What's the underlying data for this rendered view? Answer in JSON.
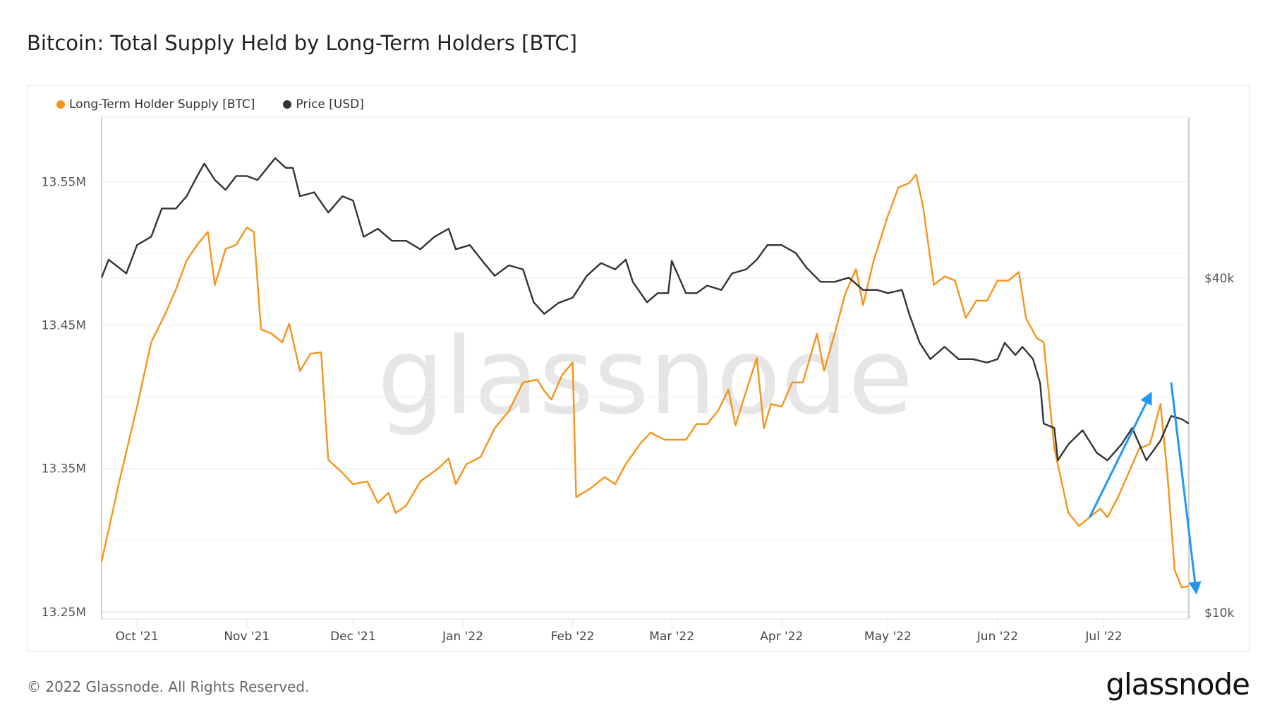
{
  "title": "Bitcoin: Total Supply Held by Long-Term Holders [BTC]",
  "footer": "© 2022 Glassnode. All Rights Reserved.",
  "logo": "glassnode",
  "chart_data": {
    "type": "line",
    "title": "Bitcoin: Total Supply Held by Long-Term Holders [BTC]",
    "watermark": "glassnode",
    "legend_position": "top-left",
    "x_range": [
      "2021-09-21",
      "2022-07-25"
    ],
    "x_ticks": [
      {
        "date": "2021-10-01",
        "label": "Oct '21"
      },
      {
        "date": "2021-11-01",
        "label": "Nov '21"
      },
      {
        "date": "2021-12-01",
        "label": "Dec '21"
      },
      {
        "date": "2022-01-01",
        "label": "Jan '22"
      },
      {
        "date": "2022-02-01",
        "label": "Feb '22"
      },
      {
        "date": "2022-03-01",
        "label": "Mar '22"
      },
      {
        "date": "2022-04-01",
        "label": "Apr '22"
      },
      {
        "date": "2022-05-01",
        "label": "May '22"
      },
      {
        "date": "2022-06-01",
        "label": "Jun '22"
      },
      {
        "date": "2022-07-01",
        "label": "Jul '22"
      }
    ],
    "y_left": {
      "ylim": [
        13.245,
        13.595
      ],
      "unit": "M BTC",
      "ticks": [
        {
          "v": 13.55,
          "label": "13.55M"
        },
        {
          "v": 13.45,
          "label": "13.45M"
        },
        {
          "v": 13.35,
          "label": "13.35M"
        },
        {
          "v": 13.25,
          "label": "13.25M"
        }
      ]
    },
    "y_right": {
      "scale": "log",
      "ticks": [
        {
          "v": 40000,
          "label": "$40k"
        },
        {
          "v": 10000,
          "label": "$10k"
        }
      ]
    },
    "series": [
      {
        "name": "Long-Term Holder Supply [BTC]",
        "axis": "left",
        "color": "#f7931a",
        "points": [
          [
            "2021-09-21",
            13.285
          ],
          [
            "2021-09-26",
            13.341
          ],
          [
            "2021-10-01",
            13.393
          ],
          [
            "2021-10-05",
            13.438
          ],
          [
            "2021-10-09",
            13.458
          ],
          [
            "2021-10-12",
            13.475
          ],
          [
            "2021-10-15",
            13.495
          ],
          [
            "2021-10-18",
            13.506
          ],
          [
            "2021-10-21",
            13.515
          ],
          [
            "2021-10-23",
            13.478
          ],
          [
            "2021-10-26",
            13.503
          ],
          [
            "2021-10-29",
            13.506
          ],
          [
            "2021-11-01",
            13.518
          ],
          [
            "2021-11-03",
            13.515
          ],
          [
            "2021-11-05",
            13.447
          ],
          [
            "2021-11-08",
            13.444
          ],
          [
            "2021-11-11",
            13.438
          ],
          [
            "2021-11-13",
            13.451
          ],
          [
            "2021-11-16",
            13.418
          ],
          [
            "2021-11-19",
            13.43
          ],
          [
            "2021-11-22",
            13.431
          ],
          [
            "2021-11-24",
            13.356
          ],
          [
            "2021-11-28",
            13.347
          ],
          [
            "2021-12-01",
            13.339
          ],
          [
            "2021-12-05",
            13.341
          ],
          [
            "2021-12-08",
            13.326
          ],
          [
            "2021-12-11",
            13.333
          ],
          [
            "2021-12-13",
            13.319
          ],
          [
            "2021-12-16",
            13.324
          ],
          [
            "2021-12-20",
            13.341
          ],
          [
            "2021-12-25",
            13.35
          ],
          [
            "2021-12-28",
            13.357
          ],
          [
            "2021-12-30",
            13.339
          ],
          [
            "2022-01-02",
            13.353
          ],
          [
            "2022-01-06",
            13.358
          ],
          [
            "2022-01-10",
            13.378
          ],
          [
            "2022-01-14",
            13.39
          ],
          [
            "2022-01-18",
            13.41
          ],
          [
            "2022-01-22",
            13.412
          ],
          [
            "2022-01-24",
            13.404
          ],
          [
            "2022-01-26",
            13.398
          ],
          [
            "2022-01-29",
            13.415
          ],
          [
            "2022-02-01",
            13.424
          ],
          [
            "2022-02-02",
            13.33
          ],
          [
            "2022-02-06",
            13.336
          ],
          [
            "2022-02-10",
            13.344
          ],
          [
            "2022-02-13",
            13.339
          ],
          [
            "2022-02-16",
            13.353
          ],
          [
            "2022-02-20",
            13.367
          ],
          [
            "2022-02-23",
            13.375
          ],
          [
            "2022-02-27",
            13.37
          ],
          [
            "2022-03-02",
            13.37
          ],
          [
            "2022-03-05",
            13.37
          ],
          [
            "2022-03-08",
            13.381
          ],
          [
            "2022-03-11",
            13.381
          ],
          [
            "2022-03-14",
            13.39
          ],
          [
            "2022-03-17",
            13.405
          ],
          [
            "2022-03-19",
            13.38
          ],
          [
            "2022-03-22",
            13.404
          ],
          [
            "2022-03-25",
            13.427
          ],
          [
            "2022-03-27",
            13.378
          ],
          [
            "2022-03-29",
            13.395
          ],
          [
            "2022-04-01",
            13.393
          ],
          [
            "2022-04-04",
            13.41
          ],
          [
            "2022-04-07",
            13.41
          ],
          [
            "2022-04-11",
            13.444
          ],
          [
            "2022-04-13",
            13.418
          ],
          [
            "2022-04-16",
            13.444
          ],
          [
            "2022-04-19",
            13.472
          ],
          [
            "2022-04-22",
            13.489
          ],
          [
            "2022-04-24",
            13.464
          ],
          [
            "2022-04-27",
            13.495
          ],
          [
            "2022-05-01",
            13.526
          ],
          [
            "2022-05-04",
            13.546
          ],
          [
            "2022-05-07",
            13.549
          ],
          [
            "2022-05-09",
            13.555
          ],
          [
            "2022-05-11",
            13.532
          ],
          [
            "2022-05-14",
            13.478
          ],
          [
            "2022-05-17",
            13.484
          ],
          [
            "2022-05-20",
            13.481
          ],
          [
            "2022-05-23",
            13.455
          ],
          [
            "2022-05-26",
            13.467
          ],
          [
            "2022-05-29",
            13.467
          ],
          [
            "2022-06-01",
            13.481
          ],
          [
            "2022-06-04",
            13.481
          ],
          [
            "2022-06-07",
            13.487
          ],
          [
            "2022-06-09",
            13.455
          ],
          [
            "2022-06-12",
            13.441
          ],
          [
            "2022-06-14",
            13.438
          ],
          [
            "2022-06-17",
            13.364
          ],
          [
            "2022-06-21",
            13.319
          ],
          [
            "2022-06-24",
            13.31
          ],
          [
            "2022-06-27",
            13.316
          ],
          [
            "2022-06-30",
            13.322
          ],
          [
            "2022-07-02",
            13.316
          ],
          [
            "2022-07-05",
            13.33
          ],
          [
            "2022-07-08",
            13.347
          ],
          [
            "2022-07-11",
            13.364
          ],
          [
            "2022-07-14",
            13.367
          ],
          [
            "2022-07-17",
            13.395
          ],
          [
            "2022-07-19",
            13.344
          ],
          [
            "2022-07-21",
            13.279
          ],
          [
            "2022-07-23",
            13.267
          ],
          [
            "2022-07-25",
            13.268
          ]
        ]
      },
      {
        "name": "Price [USD]",
        "axis": "right",
        "color": "#333333",
        "points": [
          [
            "2021-09-21",
            40100
          ],
          [
            "2021-09-23",
            43200
          ],
          [
            "2021-09-28",
            40800
          ],
          [
            "2021-10-01",
            45900
          ],
          [
            "2021-10-05",
            47500
          ],
          [
            "2021-10-08",
            53400
          ],
          [
            "2021-10-12",
            53400
          ],
          [
            "2021-10-15",
            56200
          ],
          [
            "2021-10-18",
            61100
          ],
          [
            "2021-10-20",
            64300
          ],
          [
            "2021-10-23",
            60100
          ],
          [
            "2021-10-26",
            57700
          ],
          [
            "2021-10-29",
            61100
          ],
          [
            "2021-11-01",
            61100
          ],
          [
            "2021-11-04",
            60100
          ],
          [
            "2021-11-09",
            65800
          ],
          [
            "2021-11-12",
            63200
          ],
          [
            "2021-11-14",
            63200
          ],
          [
            "2021-11-16",
            56200
          ],
          [
            "2021-11-20",
            57100
          ],
          [
            "2021-11-24",
            52500
          ],
          [
            "2021-11-28",
            56200
          ],
          [
            "2021-12-01",
            55200
          ],
          [
            "2021-12-04",
            47500
          ],
          [
            "2021-12-08",
            49100
          ],
          [
            "2021-12-12",
            46700
          ],
          [
            "2021-12-16",
            46700
          ],
          [
            "2021-12-20",
            45100
          ],
          [
            "2021-12-24",
            47500
          ],
          [
            "2021-12-28",
            49100
          ],
          [
            "2021-12-30",
            45100
          ],
          [
            "2022-01-03",
            45900
          ],
          [
            "2022-01-07",
            42600
          ],
          [
            "2022-01-10",
            40400
          ],
          [
            "2022-01-14",
            42200
          ],
          [
            "2022-01-18",
            41500
          ],
          [
            "2022-01-21",
            36200
          ],
          [
            "2022-01-24",
            34500
          ],
          [
            "2022-01-28",
            36100
          ],
          [
            "2022-02-01",
            36900
          ],
          [
            "2022-02-05",
            40400
          ],
          [
            "2022-02-09",
            42600
          ],
          [
            "2022-02-13",
            41500
          ],
          [
            "2022-02-16",
            43200
          ],
          [
            "2022-02-18",
            39400
          ],
          [
            "2022-02-22",
            36200
          ],
          [
            "2022-02-25",
            37600
          ],
          [
            "2022-02-28",
            37600
          ],
          [
            "2022-03-01",
            43000
          ],
          [
            "2022-03-05",
            37600
          ],
          [
            "2022-03-08",
            37600
          ],
          [
            "2022-03-11",
            38800
          ],
          [
            "2022-03-15",
            38100
          ],
          [
            "2022-03-18",
            40800
          ],
          [
            "2022-03-22",
            41500
          ],
          [
            "2022-03-25",
            43200
          ],
          [
            "2022-03-28",
            45900
          ],
          [
            "2022-04-01",
            45900
          ],
          [
            "2022-04-05",
            44400
          ],
          [
            "2022-04-08",
            41800
          ],
          [
            "2022-04-12",
            39400
          ],
          [
            "2022-04-16",
            39400
          ],
          [
            "2022-04-20",
            40100
          ],
          [
            "2022-04-24",
            38100
          ],
          [
            "2022-04-28",
            38100
          ],
          [
            "2022-05-01",
            37600
          ],
          [
            "2022-05-05",
            38100
          ],
          [
            "2022-05-07",
            34500
          ],
          [
            "2022-05-10",
            30600
          ],
          [
            "2022-05-13",
            28600
          ],
          [
            "2022-05-17",
            30100
          ],
          [
            "2022-05-21",
            28600
          ],
          [
            "2022-05-25",
            28600
          ],
          [
            "2022-05-29",
            28200
          ],
          [
            "2022-06-01",
            28600
          ],
          [
            "2022-06-03",
            30600
          ],
          [
            "2022-06-06",
            29100
          ],
          [
            "2022-06-08",
            30100
          ],
          [
            "2022-06-11",
            28600
          ],
          [
            "2022-06-13",
            25900
          ],
          [
            "2022-06-14",
            21900
          ],
          [
            "2022-06-17",
            21500
          ],
          [
            "2022-06-18",
            18800
          ],
          [
            "2022-06-21",
            20100
          ],
          [
            "2022-06-25",
            21300
          ],
          [
            "2022-06-29",
            19400
          ],
          [
            "2022-07-02",
            18800
          ],
          [
            "2022-07-06",
            20100
          ],
          [
            "2022-07-09",
            21500
          ],
          [
            "2022-07-13",
            18800
          ],
          [
            "2022-07-17",
            20400
          ],
          [
            "2022-07-20",
            22600
          ],
          [
            "2022-07-23",
            22300
          ],
          [
            "2022-07-25",
            21900
          ]
        ]
      }
    ],
    "annotations": [
      {
        "type": "arrow",
        "color": "#2196f3",
        "from": [
          "2022-06-27",
          13.316
        ],
        "to": [
          "2022-07-14",
          13.401
        ]
      },
      {
        "type": "arrow",
        "color": "#2196f3",
        "from": [
          "2022-07-20",
          13.41
        ],
        "to": [
          "2022-07-27",
          13.265
        ]
      }
    ]
  }
}
